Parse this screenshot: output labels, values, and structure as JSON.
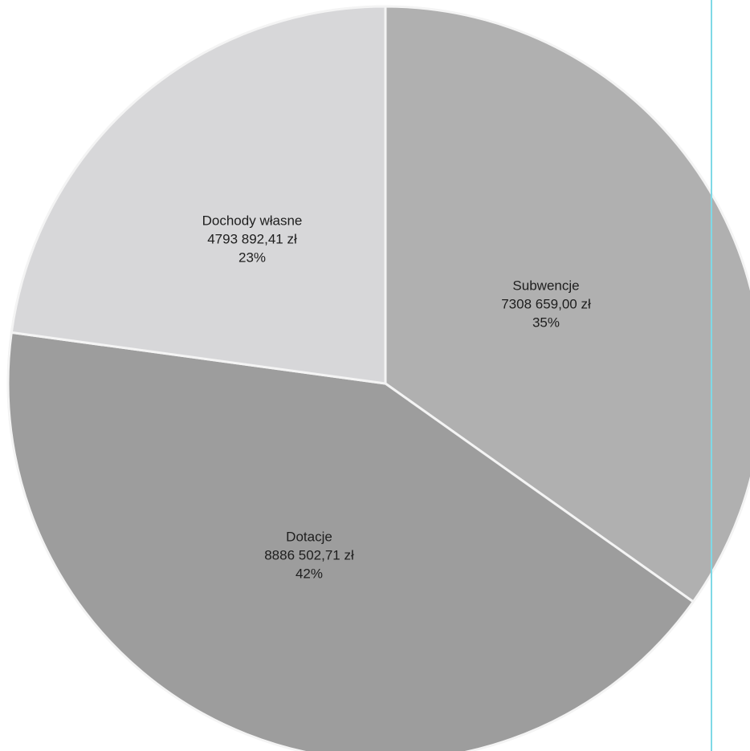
{
  "chart_data": {
    "type": "pie",
    "title": "",
    "legend": "none",
    "slices": [
      {
        "label": "Subwencje",
        "value": 7308659.0,
        "value_text": "7308 659,00 zł",
        "percent_text": "35%",
        "color": "#b0b0b0"
      },
      {
        "label": "Dotacje",
        "value": 8886502.71,
        "value_text": "8886 502,71 zł",
        "percent_text": "42%",
        "color": "#9d9d9d"
      },
      {
        "label": "Dochody własne",
        "value": 4793892.41,
        "value_text": "4793 892,41 zł",
        "percent_text": "23%",
        "color": "#d7d7d9"
      }
    ],
    "start_angle_deg": 0,
    "direction": "clockwise",
    "separator_color": "#f4f4f4",
    "text_color": "#1e1e1e"
  },
  "page": {
    "background": "#ffffff",
    "edge_line_color": "#7fd9e6"
  }
}
